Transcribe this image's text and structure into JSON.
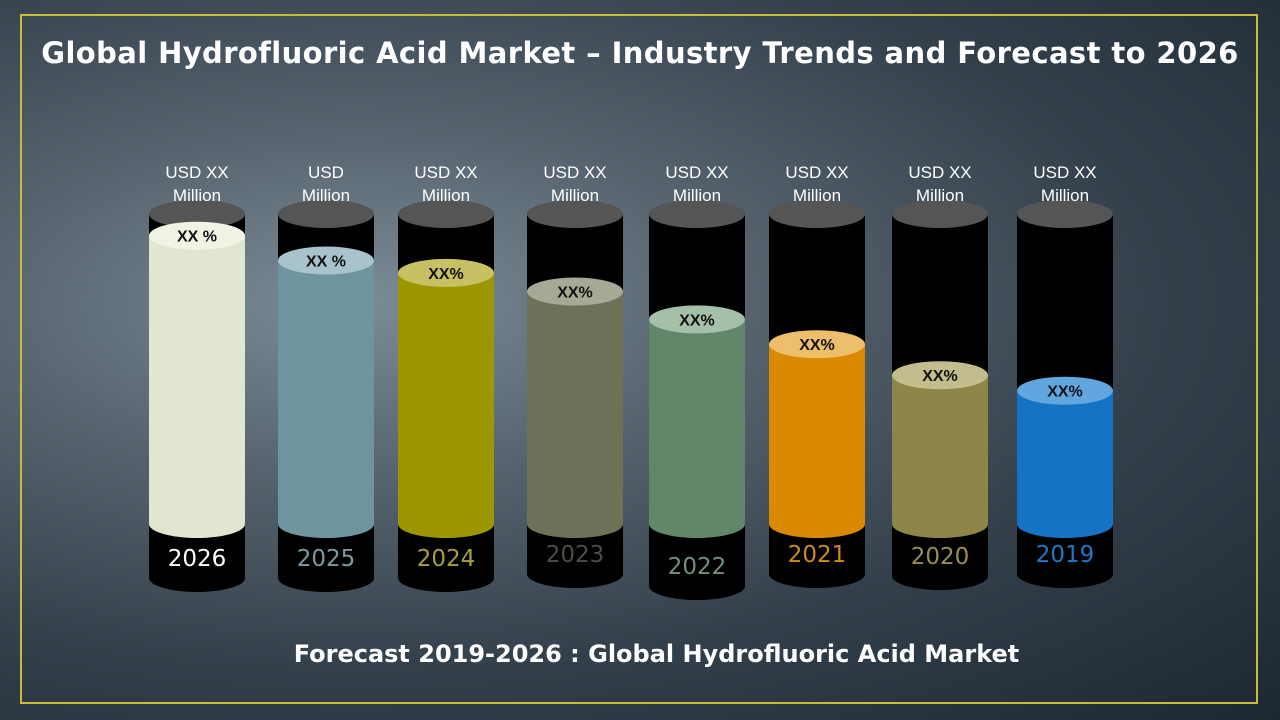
{
  "title": "Global Hydrofluoric Acid Market – Industry Trends and Forecast to 2026",
  "footer": "Forecast 2019-2026 : Global Hydrofluoric Acid Market",
  "colors": {
    "frame": "#c9bb3c",
    "tube_background": "#000000",
    "tube_cap": "#555555"
  },
  "chart_data": {
    "type": "bar",
    "title": "Global Hydrofluoric Acid Market – Industry Trends and Forecast to 2026",
    "xlabel": "",
    "ylabel": "",
    "ylim": [
      0,
      1
    ],
    "grid": false,
    "categories": [
      "2026",
      "2025",
      "2024",
      "2023",
      "2022",
      "2021",
      "2020",
      "2019"
    ],
    "values": [
      0.93,
      0.85,
      0.81,
      0.75,
      0.66,
      0.58,
      0.48,
      0.43
    ],
    "value_note": "fill level relative to tube height (values not printed)",
    "value_labels": [
      [
        "USD  XX",
        "Million"
      ],
      [
        "USD",
        "Million"
      ],
      [
        "USD  XX",
        "Million"
      ],
      [
        "USD XX",
        "Million"
      ],
      [
        "USD  XX",
        "Million"
      ],
      [
        "USD  XX",
        "Million"
      ],
      [
        "USD  XX",
        "Million"
      ],
      [
        "USD  XX",
        "Million"
      ]
    ],
    "growth_labels": [
      "XX %",
      "XX   %",
      "XX%",
      "XX%",
      "XX%",
      "XX%",
      "XX%",
      "XX%"
    ],
    "series_colors": [
      "#e1e6d1",
      "#6d949f",
      "#9c9600",
      "#6e7058",
      "#62866a",
      "#d98a00",
      "#8e8648",
      "#1572c4"
    ],
    "top_colors": [
      "#f1f3e5",
      "#a9c3cd",
      "#c8c164",
      "#a8a896",
      "#a5bfa8",
      "#eebf6a",
      "#c2bc8e",
      "#62a6e0"
    ],
    "year_colors": [
      "#ffffff",
      "#7d9aa4",
      "#a79e3d",
      "#4d4d45",
      "#72907b",
      "#cf8a1f",
      "#988d57",
      "#1e78c8"
    ]
  }
}
